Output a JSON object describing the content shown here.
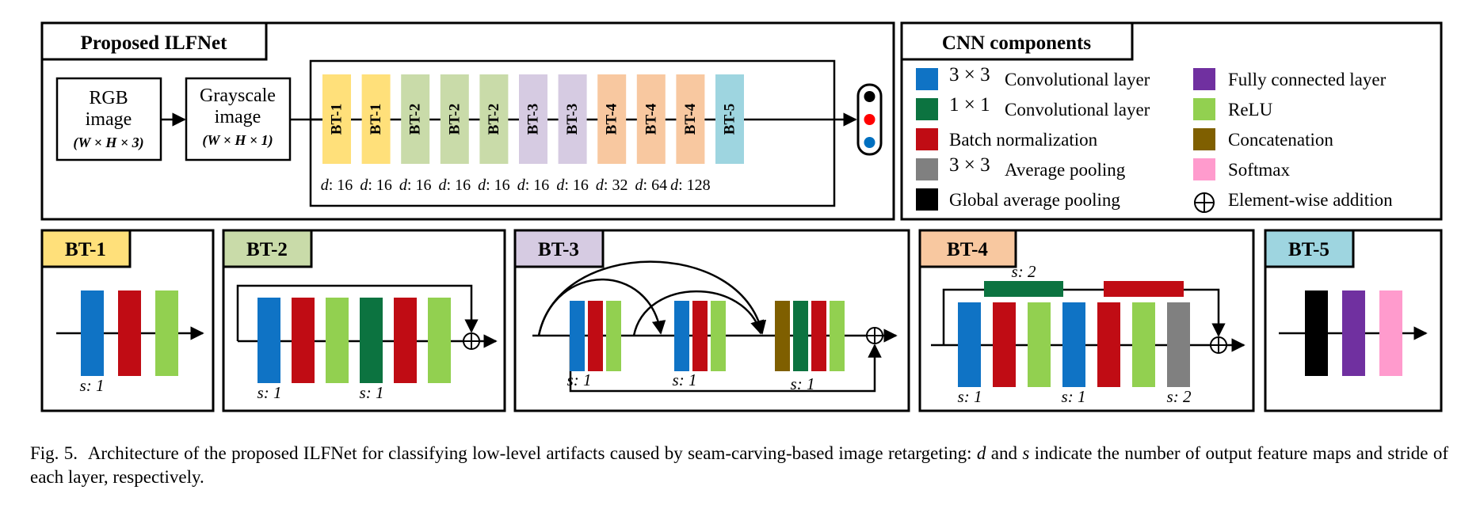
{
  "colors": {
    "bt1": "#FFE07A",
    "bt2": "#C9DBA9",
    "bt3": "#D6CBE2",
    "bt4": "#F8C8A0",
    "bt5": "#9ED5E0",
    "conv3": "#0F73C5",
    "conv1": "#0C7340",
    "bn": "#C00C14",
    "avgpool": "#808080",
    "gap": "#000000",
    "fc": "#7030A0",
    "relu": "#92D050",
    "concat": "#7F5F00",
    "softmax": "#FF9BCD",
    "out_black": "#000000",
    "out_red": "#FF0000",
    "out_blue": "#0070C0"
  },
  "proposed": {
    "title": "Proposed ILFNet",
    "rgb": {
      "line1": "RGB",
      "line2": "image",
      "dims": "(W × H × 3)"
    },
    "gray": {
      "line1": "Grayscale",
      "line2": "image",
      "dims": "(W × H × 1)"
    },
    "blocks": [
      {
        "label": "BT-1",
        "type": "bt1",
        "d": "d: 16"
      },
      {
        "label": "BT-1",
        "type": "bt1",
        "d": "d: 16"
      },
      {
        "label": "BT-2",
        "type": "bt2",
        "d": "d: 16"
      },
      {
        "label": "BT-2",
        "type": "bt2",
        "d": "d: 16"
      },
      {
        "label": "BT-2",
        "type": "bt2",
        "d": "d: 16"
      },
      {
        "label": "BT-3",
        "type": "bt3",
        "d": "d: 16"
      },
      {
        "label": "BT-3",
        "type": "bt3",
        "d": "d: 16"
      },
      {
        "label": "BT-4",
        "type": "bt4",
        "d": "d: 32"
      },
      {
        "label": "BT-4",
        "type": "bt4",
        "d": "d: 64"
      },
      {
        "label": "BT-4",
        "type": "bt4",
        "d": "d: 128"
      },
      {
        "label": "BT-5",
        "type": "bt5",
        "d": ""
      }
    ],
    "outputs": [
      "out_black",
      "out_red",
      "out_blue"
    ]
  },
  "components": {
    "title": "CNN components",
    "left": [
      {
        "math": "3 × 3",
        "text": "Convolutional layer",
        "color": "conv3"
      },
      {
        "math": "1 × 1",
        "text": "Convolutional layer",
        "color": "conv1"
      },
      {
        "math": "",
        "text": "Batch normalization",
        "color": "bn"
      },
      {
        "math": "3 × 3",
        "text": "Average pooling",
        "color": "avgpool"
      },
      {
        "math": "",
        "text": "Global average pooling",
        "color": "gap"
      }
    ],
    "right": [
      {
        "text": "Fully connected layer",
        "color": "fc"
      },
      {
        "text": "ReLU",
        "color": "relu"
      },
      {
        "text": "Concatenation",
        "color": "concat"
      },
      {
        "text": "Softmax",
        "color": "softmax"
      },
      {
        "text": "Element-wise addition",
        "color": "add"
      }
    ]
  },
  "bt1": {
    "title": "BT-1",
    "stride": "s: 1"
  },
  "bt2": {
    "title": "BT-2",
    "stride1": "s: 1",
    "stride2": "s: 1"
  },
  "bt3": {
    "title": "BT-3",
    "stride1": "s: 1",
    "stride2": "s: 1",
    "stride3": "s: 1"
  },
  "bt4": {
    "title": "BT-4",
    "top_stride": "s: 2",
    "stride1": "s: 1",
    "stride2": "s: 1",
    "stride3": "s: 2"
  },
  "bt5": {
    "title": "BT-5"
  },
  "caption": {
    "fig": "Fig. 5.",
    "part1": "Architecture of the proposed ILFNet for classifying low-level artifacts caused by seam-carving-based image retargeting: ",
    "var_d": "d",
    "and": " and ",
    "var_s": "s",
    "part2": " indicate the number of output feature maps and stride of each layer, respectively."
  }
}
